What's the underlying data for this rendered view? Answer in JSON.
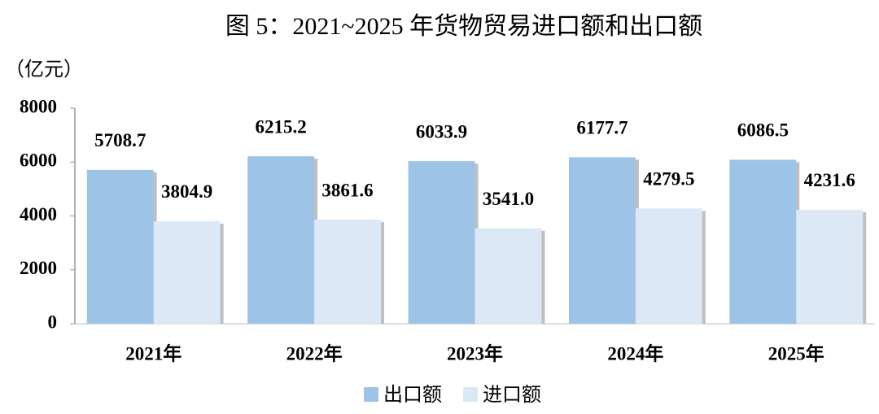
{
  "chart_data": {
    "type": "bar",
    "title": "图 5：2021~2025 年货物贸易进口额和出口额",
    "y_label": "（亿元）",
    "categories": [
      "2021年",
      "2022年",
      "2023年",
      "2024年",
      "2025年"
    ],
    "series": [
      {
        "name": "出口额",
        "color": "#9dc3e6",
        "values": [
          5708.7,
          6215.2,
          6033.9,
          6177.7,
          6086.5
        ],
        "value_labels": [
          "5708.7",
          "6215.2",
          "6033.9",
          "6177.7",
          "6086.5"
        ]
      },
      {
        "name": "进口额",
        "color": "#dce8f5",
        "values": [
          3804.9,
          3861.6,
          3541.0,
          4279.5,
          4231.6
        ],
        "value_labels": [
          "3804.9",
          "3861.6",
          "3541.0",
          "4279.5",
          "4231.6"
        ]
      }
    ],
    "ylim": [
      0,
      8000
    ],
    "yticks": [
      0,
      2000,
      4000,
      6000,
      8000
    ],
    "grid": false,
    "legend": "bottom"
  }
}
